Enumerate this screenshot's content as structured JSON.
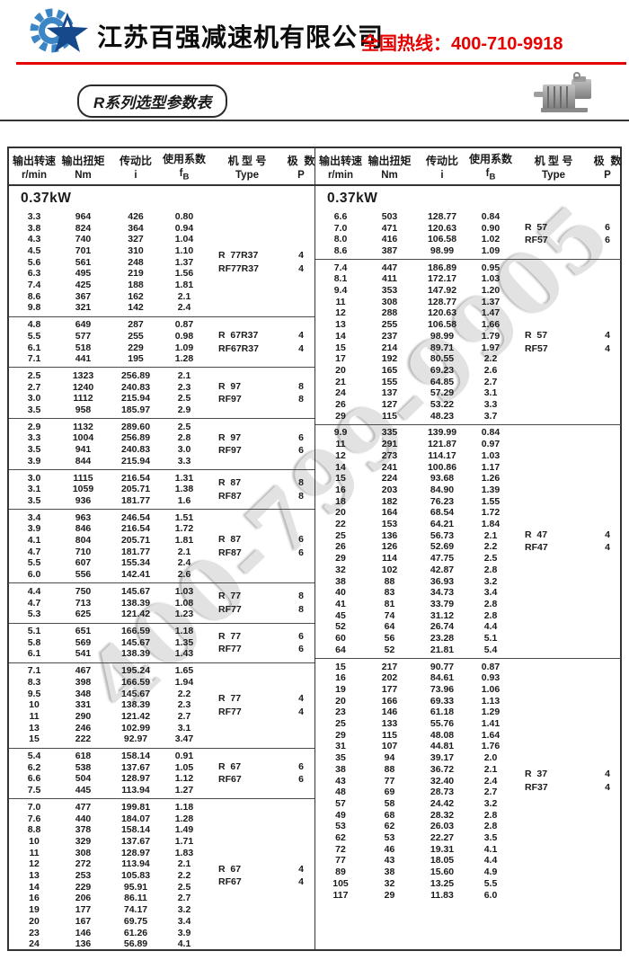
{
  "header": {
    "company": "江苏百强减速机有限公司",
    "hotline_label": "全国热线：",
    "hotline_number": "400-710-9918",
    "accent_red": "#e60000",
    "logo_colors": {
      "gear": "#3d86c6",
      "star": "#16498c"
    }
  },
  "title_badge": "R系列选型参数表",
  "watermark": "400-799-9905",
  "table": {
    "col_headers_zh": [
      "输出转速",
      "输出扭矩",
      "传动比",
      "使用系数",
      "机 型 号",
      "极  数"
    ],
    "col_units": [
      "r/min",
      "Nm",
      "i",
      "",
      "Type",
      "P"
    ],
    "fb_unit": {
      "main": "f",
      "sub": "B"
    },
    "power": "0.37kW",
    "left_blocks": [
      {
        "rows": [
          [
            "3.3",
            "964",
            "426",
            "0.80"
          ],
          [
            "3.8",
            "824",
            "364",
            "0.94"
          ],
          [
            "4.3",
            "740",
            "327",
            "1.04"
          ],
          [
            "4.5",
            "701",
            "310",
            "1.10"
          ],
          [
            "5.6",
            "561",
            "248",
            "1.37"
          ],
          [
            "6.3",
            "495",
            "219",
            "1.56"
          ],
          [
            "7.4",
            "425",
            "188",
            "1.81"
          ],
          [
            "8.6",
            "367",
            "162",
            "2.1"
          ],
          [
            "9.8",
            "321",
            "142",
            "2.4"
          ]
        ],
        "type": [
          "R  77R37",
          "RF77R37"
        ],
        "p": [
          "4",
          "4"
        ]
      },
      {
        "rows": [
          [
            "4.8",
            "649",
            "287",
            "0.87"
          ],
          [
            "5.5",
            "577",
            "255",
            "0.98"
          ],
          [
            "6.1",
            "518",
            "229",
            "1.09"
          ],
          [
            "7.1",
            "441",
            "195",
            "1.28"
          ]
        ],
        "type": [
          "R  67R37",
          "RF67R37"
        ],
        "p": [
          "4",
          "4"
        ]
      },
      {
        "rows": [
          [
            "2.5",
            "1323",
            "256.89",
            "2.1"
          ],
          [
            "2.7",
            "1240",
            "240.83",
            "2.3"
          ],
          [
            "3.0",
            "1112",
            "215.94",
            "2.5"
          ],
          [
            "3.5",
            "958",
            "185.97",
            "2.9"
          ]
        ],
        "type": [
          "R  97",
          "RF97"
        ],
        "p": [
          "8",
          "8"
        ]
      },
      {
        "rows": [
          [
            "2.9",
            "1132",
            "289.60",
            "2.5"
          ],
          [
            "3.3",
            "1004",
            "256.89",
            "2.8"
          ],
          [
            "3.5",
            "941",
            "240.83",
            "3.0"
          ],
          [
            "3.9",
            "844",
            "215.94",
            "3.3"
          ]
        ],
        "type": [
          "R  97",
          "RF97"
        ],
        "p": [
          "6",
          "6"
        ]
      },
      {
        "rows": [
          [
            "3.0",
            "1115",
            "216.54",
            "1.31"
          ],
          [
            "3.1",
            "1059",
            "205.71",
            "1.38"
          ],
          [
            "3.5",
            "936",
            "181.77",
            "1.6"
          ]
        ],
        "type": [
          "R  87",
          "RF87"
        ],
        "p": [
          "8",
          "8"
        ]
      },
      {
        "rows": [
          [
            "3.4",
            "963",
            "246.54",
            "1.51"
          ],
          [
            "3.9",
            "846",
            "216.54",
            "1.72"
          ],
          [
            "4.1",
            "804",
            "205.71",
            "1.81"
          ],
          [
            "4.7",
            "710",
            "181.77",
            "2.1"
          ],
          [
            "5.5",
            "607",
            "155.34",
            "2.4"
          ],
          [
            "6.0",
            "556",
            "142.41",
            "2.6"
          ]
        ],
        "type": [
          "R  87",
          "RF87"
        ],
        "p": [
          "6",
          "6"
        ]
      },
      {
        "rows": [
          [
            "4.4",
            "750",
            "145.67",
            "1.03"
          ],
          [
            "4.7",
            "713",
            "138.39",
            "1.08"
          ],
          [
            "5.3",
            "625",
            "121.42",
            "1.23"
          ]
        ],
        "type": [
          "R  77",
          "RF77"
        ],
        "p": [
          "8",
          "8"
        ]
      },
      {
        "rows": [
          [
            "5.1",
            "651",
            "166.59",
            "1.18"
          ],
          [
            "5.8",
            "569",
            "145.67",
            "1.35"
          ],
          [
            "6.1",
            "541",
            "138.39",
            "1.43"
          ]
        ],
        "type": [
          "R  77",
          "RF77"
        ],
        "p": [
          "6",
          "6"
        ]
      },
      {
        "rows": [
          [
            "7.1",
            "467",
            "195.24",
            "1.65"
          ],
          [
            "8.3",
            "398",
            "166.59",
            "1.94"
          ],
          [
            "9.5",
            "348",
            "145.67",
            "2.2"
          ],
          [
            "10",
            "331",
            "138.39",
            "2.3"
          ],
          [
            "11",
            "290",
            "121.42",
            "2.7"
          ],
          [
            "13",
            "246",
            "102.99",
            "3.1"
          ],
          [
            "15",
            "222",
            "92.97",
            "3.47"
          ]
        ],
        "type": [
          "R  77",
          "RF77"
        ],
        "p": [
          "4",
          "4"
        ]
      },
      {
        "rows": [
          [
            "5.4",
            "618",
            "158.14",
            "0.91"
          ],
          [
            "6.2",
            "538",
            "137.67",
            "1.05"
          ],
          [
            "6.6",
            "504",
            "128.97",
            "1.12"
          ],
          [
            "7.5",
            "445",
            "113.94",
            "1.27"
          ]
        ],
        "type": [
          "R  67",
          "RF67"
        ],
        "p": [
          "6",
          "6"
        ]
      },
      {
        "rows": [
          [
            "7.0",
            "477",
            "199.81",
            "1.18"
          ],
          [
            "7.6",
            "440",
            "184.07",
            "1.28"
          ],
          [
            "8.8",
            "378",
            "158.14",
            "1.49"
          ],
          [
            "10",
            "329",
            "137.67",
            "1.71"
          ],
          [
            "11",
            "308",
            "128.97",
            "1.83"
          ],
          [
            "12",
            "272",
            "113.94",
            "2.1"
          ],
          [
            "13",
            "253",
            "105.83",
            "2.2"
          ],
          [
            "14",
            "229",
            "95.91",
            "2.5"
          ],
          [
            "16",
            "206",
            "86.11",
            "2.7"
          ],
          [
            "19",
            "177",
            "74.17",
            "3.2"
          ],
          [
            "20",
            "167",
            "69.75",
            "3.4"
          ],
          [
            "23",
            "146",
            "61.26",
            "3.9"
          ],
          [
            "24",
            "136",
            "56.89",
            "4.1"
          ]
        ],
        "type": [
          "R  67",
          "RF67"
        ],
        "p": [
          "4",
          "4"
        ]
      }
    ],
    "right_blocks": [
      {
        "rows": [
          [
            "6.6",
            "503",
            "128.77",
            "0.84"
          ],
          [
            "7.0",
            "471",
            "120.63",
            "0.90"
          ],
          [
            "8.0",
            "416",
            "106.58",
            "1.02"
          ],
          [
            "8.6",
            "387",
            "98.99",
            "1.09"
          ]
        ],
        "type": [
          "R  57",
          "RF57"
        ],
        "p": [
          "6",
          "6"
        ]
      },
      {
        "rows": [
          [
            "7.4",
            "447",
            "186.89",
            "0.95"
          ],
          [
            "8.1",
            "411",
            "172.17",
            "1.03"
          ],
          [
            "9.4",
            "353",
            "147.92",
            "1.20"
          ],
          [
            "11",
            "308",
            "128.77",
            "1.37"
          ],
          [
            "12",
            "288",
            "120.63",
            "1.47"
          ],
          [
            "13",
            "255",
            "106.58",
            "1.66"
          ],
          [
            "14",
            "237",
            "98.99",
            "1.79"
          ],
          [
            "15",
            "214",
            "89.71",
            "1.97"
          ],
          [
            "17",
            "192",
            "80.55",
            "2.2"
          ],
          [
            "20",
            "165",
            "69.23",
            "2.6"
          ],
          [
            "21",
            "155",
            "64.85",
            "2.7"
          ],
          [
            "24",
            "137",
            "57.29",
            "3.1"
          ],
          [
            "26",
            "127",
            "53.22",
            "3.3"
          ],
          [
            "29",
            "115",
            "48.23",
            "3.7"
          ]
        ],
        "type": [
          "R  57",
          "RF57"
        ],
        "p": [
          "4",
          "4"
        ]
      },
      {
        "rows": [
          [
            "9.9",
            "335",
            "139.99",
            "0.84"
          ],
          [
            "11",
            "291",
            "121.87",
            "0.97"
          ],
          [
            "12",
            "273",
            "114.17",
            "1.03"
          ],
          [
            "14",
            "241",
            "100.86",
            "1.17"
          ],
          [
            "15",
            "224",
            "93.68",
            "1.26"
          ],
          [
            "16",
            "203",
            "84.90",
            "1.39"
          ],
          [
            "18",
            "182",
            "76.23",
            "1.55"
          ],
          [
            "20",
            "164",
            "68.54",
            "1.72"
          ],
          [
            "22",
            "153",
            "64.21",
            "1.84"
          ],
          [
            "25",
            "136",
            "56.73",
            "2.1"
          ],
          [
            "26",
            "126",
            "52.69",
            "2.2"
          ],
          [
            "29",
            "114",
            "47.75",
            "2.5"
          ],
          [
            "32",
            "102",
            "42.87",
            "2.8"
          ],
          [
            "38",
            "88",
            "36.93",
            "3.2"
          ],
          [
            "40",
            "83",
            "34.73",
            "3.4"
          ],
          [
            "41",
            "81",
            "33.79",
            "2.8"
          ],
          [
            "45",
            "74",
            "31.12",
            "2.8"
          ],
          [
            "52",
            "64",
            "26.74",
            "4.4"
          ],
          [
            "60",
            "56",
            "23.28",
            "5.1"
          ],
          [
            "64",
            "52",
            "21.81",
            "5.4"
          ]
        ],
        "type": [
          "R  47",
          "RF47"
        ],
        "p": [
          "4",
          "4"
        ]
      },
      {
        "rows": [
          [
            "15",
            "217",
            "90.77",
            "0.87"
          ],
          [
            "16",
            "202",
            "84.61",
            "0.93"
          ],
          [
            "19",
            "177",
            "73.96",
            "1.06"
          ],
          [
            "20",
            "166",
            "69.33",
            "1.13"
          ],
          [
            "23",
            "146",
            "61.18",
            "1.29"
          ],
          [
            "25",
            "133",
            "55.76",
            "1.41"
          ],
          [
            "29",
            "115",
            "48.08",
            "1.64"
          ],
          [
            "31",
            "107",
            "44.81",
            "1.76"
          ],
          [
            "35",
            "94",
            "39.17",
            "2.0"
          ],
          [
            "38",
            "88",
            "36.72",
            "2.1"
          ],
          [
            "43",
            "77",
            "32.40",
            "2.4"
          ],
          [
            "48",
            "69",
            "28.73",
            "2.7"
          ],
          [
            "57",
            "58",
            "24.42",
            "3.2"
          ],
          [
            "49",
            "68",
            "28.32",
            "2.8"
          ],
          [
            "53",
            "62",
            "26.03",
            "2.8"
          ],
          [
            "62",
            "53",
            "22.27",
            "3.5"
          ],
          [
            "72",
            "46",
            "19.31",
            "4.1"
          ],
          [
            "77",
            "43",
            "18.05",
            "4.4"
          ],
          [
            "89",
            "38",
            "15.60",
            "4.9"
          ],
          [
            "105",
            "32",
            "13.25",
            "5.5"
          ],
          [
            "117",
            "29",
            "11.83",
            "6.0"
          ]
        ],
        "type": [
          "R  37",
          "RF37"
        ],
        "p": [
          "4",
          "4"
        ]
      }
    ]
  }
}
